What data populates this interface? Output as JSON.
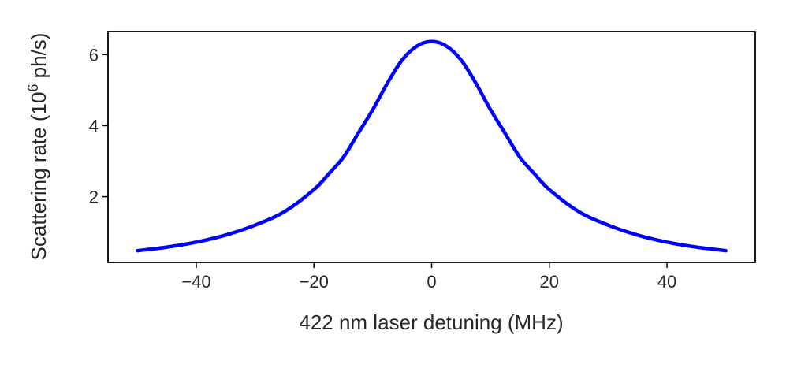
{
  "chart_data": {
    "type": "line",
    "title": "",
    "xlabel": "422 nm laser detuning (MHz)",
    "ylabel": {
      "prefix": "Scattering rate (10",
      "superscript": "6",
      "suffix": " ph/s)"
    },
    "xlim": [
      -55,
      55
    ],
    "ylim": [
      0.15,
      6.65
    ],
    "xticks": [
      -40,
      -20,
      0,
      20,
      40
    ],
    "xtick_labels": [
      "−40",
      "−20",
      "0",
      "20",
      "40"
    ],
    "yticks": [
      2,
      4,
      6
    ],
    "ytick_labels": [
      "2",
      "4",
      "6"
    ],
    "grid": false,
    "legend": "none",
    "series": [
      {
        "color": "#0000ff",
        "x": [
          -50,
          -45,
          -40,
          -35,
          -30,
          -25,
          -20,
          -17.5,
          -15,
          -12.5,
          -10,
          -7.5,
          -5,
          -2.5,
          0,
          2.5,
          5,
          7.5,
          10,
          12.5,
          15,
          17.5,
          20,
          25,
          30,
          35,
          40,
          45,
          50
        ],
        "y": [
          0.48,
          0.58,
          0.72,
          0.92,
          1.2,
          1.58,
          2.2,
          2.64,
          3.11,
          3.78,
          4.45,
          5.2,
          5.85,
          6.24,
          6.37,
          6.24,
          5.85,
          5.2,
          4.45,
          3.78,
          3.11,
          2.64,
          2.2,
          1.58,
          1.2,
          0.92,
          0.72,
          0.58,
          0.48
        ]
      }
    ]
  }
}
